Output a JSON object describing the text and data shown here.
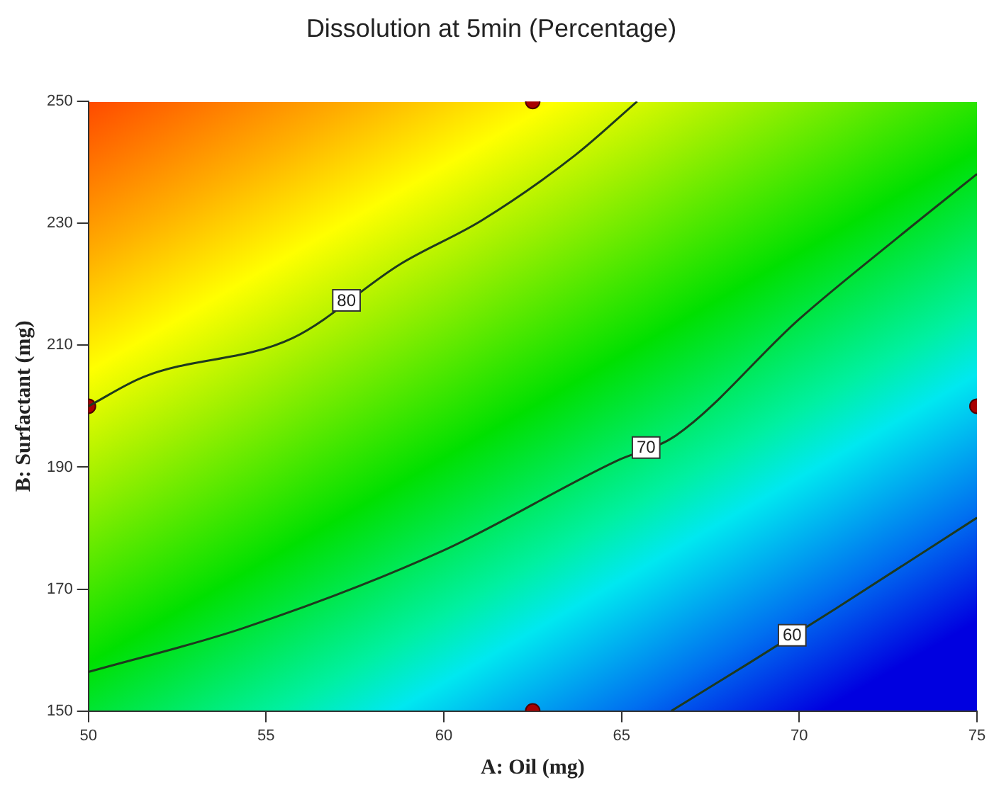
{
  "chart_data": {
    "type": "line",
    "title": "Dissolution at 5min (Percentage)",
    "xlabel": "A: Oil (mg)",
    "ylabel": "B: Surfactant (mg)",
    "xlim": [
      50,
      75
    ],
    "xticks": [
      50,
      55,
      60,
      65,
      70,
      75
    ],
    "ylim": [
      150,
      250
    ],
    "yticks": [
      150,
      170,
      190,
      210,
      230,
      250
    ],
    "grid": false,
    "legend": false,
    "series": [
      {
        "name": "80",
        "color": "#1e3a1e",
        "marker": "none",
        "x": [
          50,
          51.55,
          55.75,
          58.77,
          61.07,
          63.7,
          65.44
        ],
        "values": [
          200,
          204.8,
          211.2,
          223.3,
          230.5,
          241.2,
          250
        ]
      },
      {
        "name": "70",
        "color": "#1e3a1e",
        "marker": "none",
        "x": [
          50,
          54.36,
          59.94,
          64.85,
          66.53,
          70.0,
          72.82,
          75
        ],
        "values": [
          156.4,
          163.6,
          176.2,
          191,
          195.2,
          214.3,
          227.9,
          238.1
        ]
      },
      {
        "name": "60",
        "color": "#1e3a1e",
        "marker": "none",
        "x": [
          66.4,
          68.6,
          71.0,
          75
        ],
        "values": [
          150,
          157.9,
          166.7,
          181.7
        ]
      },
      {
        "type": "scatter",
        "color": "#a80000",
        "marker": "circle",
        "x": [
          62.5,
          50,
          75,
          62.5
        ],
        "values": [
          250,
          200,
          200,
          150
        ]
      }
    ]
  }
}
